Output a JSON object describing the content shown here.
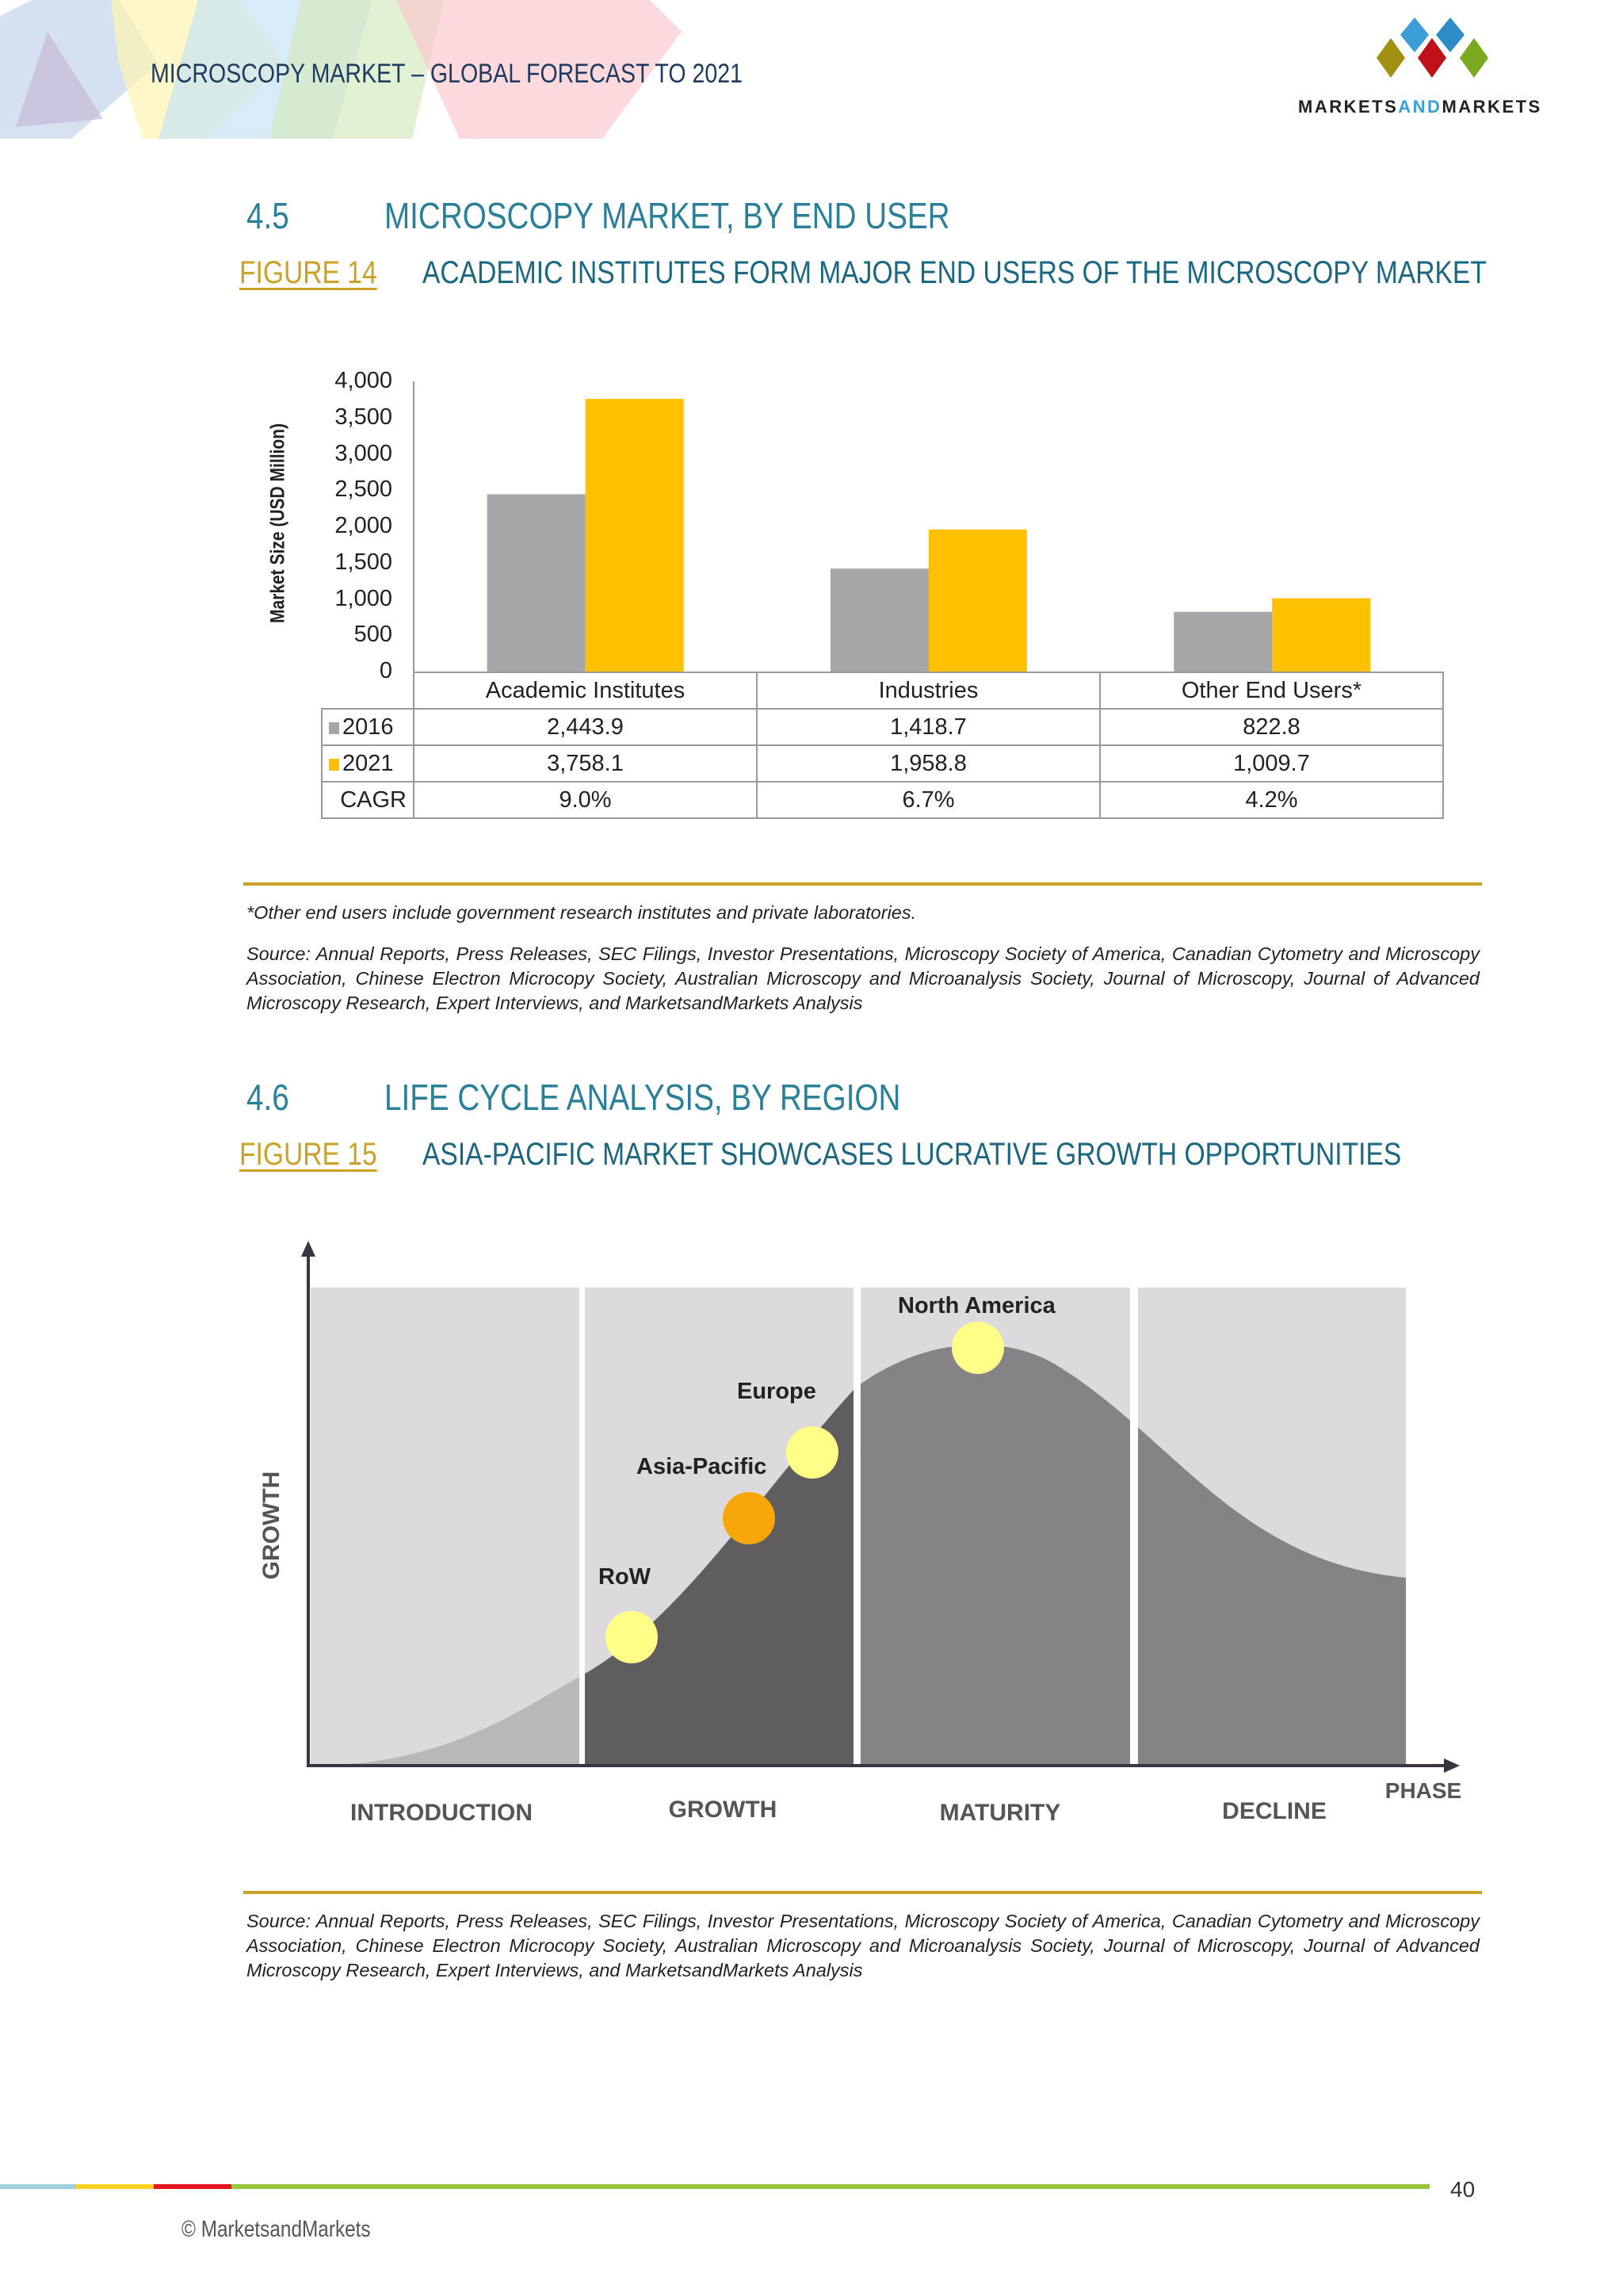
{
  "header": {
    "title": "MICROSCOPY MARKET – GLOBAL FORECAST TO 2021",
    "logo_text": "MARKETSANDMARKETS",
    "logo_parts": [
      "MARKETS",
      "AND",
      "MARKETS"
    ]
  },
  "section1": {
    "number": "4.5",
    "title": "MICROSCOPY MARKET, BY END USER",
    "figure_label": "FIGURE",
    "figure_num": "14",
    "figure_caption": "ACADEMIC INSTITUTES FORM MAJOR END USERS OF THE MICROSCOPY MARKET"
  },
  "chart_data": {
    "type": "bar",
    "ylabel": "Market Size (USD Million)",
    "ylim": [
      0,
      4000
    ],
    "yticks": [
      "4,000",
      "3,500",
      "3,000",
      "2,500",
      "2,000",
      "1,500",
      "1,000",
      "500",
      "0"
    ],
    "categories": [
      "Academic Institutes",
      "Industries",
      "Other End Users*"
    ],
    "series": [
      {
        "name": "2016",
        "values": [
          2443.9,
          1418.7,
          822.8
        ],
        "labels": [
          "2,443.9",
          "1,418.7",
          "822.8"
        ],
        "color": "#a6a5a7"
      },
      {
        "name": "2021",
        "values": [
          3758.1,
          1958.8,
          1009.7
        ],
        "labels": [
          "3,758.1",
          "1,958.8",
          "1,009.7"
        ],
        "color": "#ffc000"
      }
    ],
    "cagr_label": "CAGR",
    "cagr": [
      "9.0%",
      "6.7%",
      "4.2%"
    ],
    "legend": "data-table"
  },
  "footnote1": "*Other end users include government research institutes and private laboratories.",
  "source1": "Source: Annual Reports, Press Releases, SEC Filings, Investor Presentations, Microscopy Society of America, Canadian Cytometry and Microscopy Association, Chinese Electron Microcopy Society, Australian Microscopy and Microanalysis Society, Journal of Microscopy, Journal of Advanced Microscopy Research, Expert Interviews, and MarketsandMarkets Analysis",
  "section2": {
    "number": "4.6",
    "title": "LIFE CYCLE ANALYSIS, BY REGION",
    "figure_label": "FIGURE",
    "figure_num": "15",
    "figure_caption": "ASIA-PACIFIC MARKET SHOWCASES LUCRATIVE GROWTH OPPORTUNITIES"
  },
  "lifecycle": {
    "y_axis": "GROWTH",
    "x_axis": "PHASE",
    "phases": [
      "INTRODUCTION",
      "GROWTH",
      "MATURITY",
      "DECLINE"
    ],
    "regions": [
      {
        "name": "RoW",
        "phase": "GROWTH",
        "color": "#ffff88"
      },
      {
        "name": "Asia-Pacific",
        "phase": "GROWTH",
        "color": "#f7a70a"
      },
      {
        "name": "Europe",
        "phase": "GROWTH",
        "color": "#ffff88"
      },
      {
        "name": "North  America",
        "phase": "MATURITY",
        "color": "#ffff88"
      }
    ]
  },
  "source2": "Source: Annual Reports, Press Releases, SEC Filings, Investor Presentations, Microscopy Society of America, Canadian Cytometry and Microscopy Association, Chinese Electron Microcopy Society, Australian Microscopy and Microanalysis Society, Journal of Microscopy, Journal of Advanced Microscopy Research, Expert Interviews, and MarketsandMarkets Analysis",
  "footer": {
    "page": "40",
    "copyright": "© MarketsandMarkets"
  }
}
